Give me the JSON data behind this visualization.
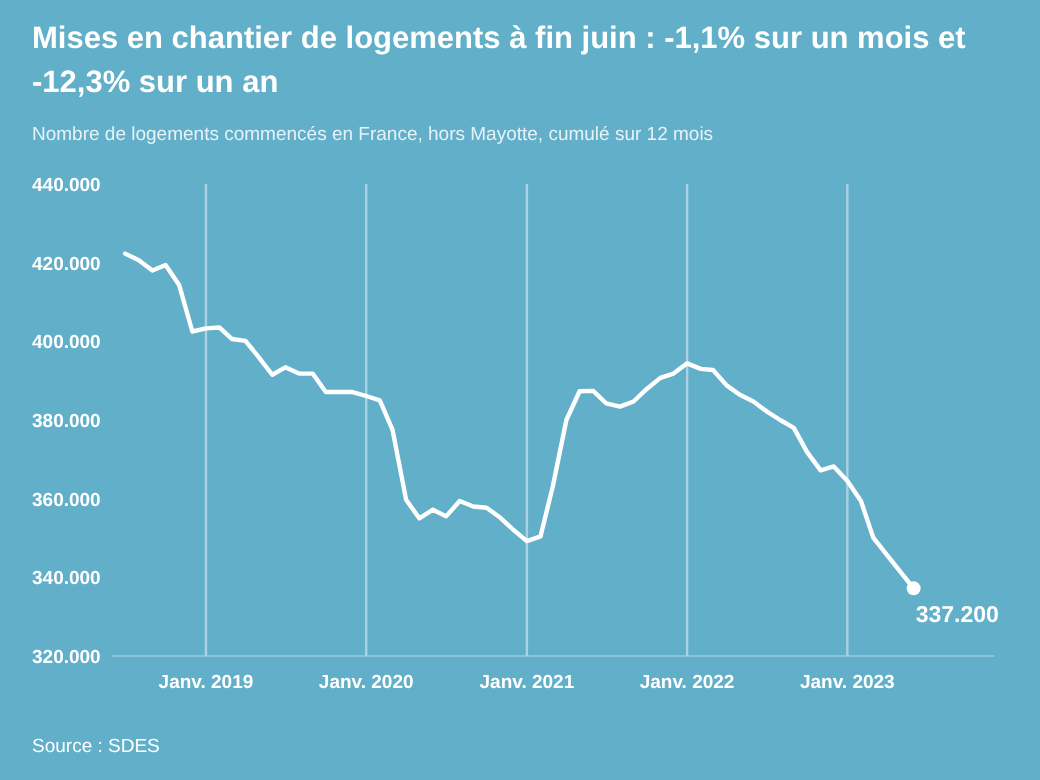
{
  "chart_data": {
    "type": "line",
    "title": "Mises en chantier de logements à fin juin : -1,1% sur un mois et -12,3% sur un an",
    "subtitle": "Nombre de logements commencés en France, hors Mayotte, cumulé sur 12 mois",
    "x": [
      "2018-07",
      "2018-08",
      "2018-09",
      "2018-10",
      "2018-11",
      "2018-12",
      "2019-01",
      "2019-02",
      "2019-03",
      "2019-04",
      "2019-05",
      "2019-06",
      "2019-07",
      "2019-08",
      "2019-09",
      "2019-10",
      "2019-11",
      "2019-12",
      "2020-01",
      "2020-02",
      "2020-03",
      "2020-04",
      "2020-05",
      "2020-06",
      "2020-07",
      "2020-08",
      "2020-09",
      "2020-10",
      "2020-11",
      "2020-12",
      "2021-01",
      "2021-02",
      "2021-03",
      "2021-04",
      "2021-05",
      "2021-06",
      "2021-07",
      "2021-08",
      "2021-09",
      "2021-10",
      "2021-11",
      "2021-12",
      "2022-01",
      "2022-02",
      "2022-03",
      "2022-04",
      "2022-05",
      "2022-06",
      "2022-07",
      "2022-08",
      "2022-09",
      "2022-10",
      "2022-11",
      "2022-12",
      "2023-01",
      "2023-02",
      "2023-03",
      "2023-04",
      "2023-05",
      "2023-06"
    ],
    "series": [
      {
        "color": "#ffffff",
        "values": [
          422300,
          420600,
          418000,
          419400,
          414300,
          402500,
          403300,
          403500,
          400600,
          400100,
          396000,
          391500,
          393400,
          391800,
          391800,
          387100,
          387100,
          387100,
          386100,
          385000,
          377500,
          359700,
          355000,
          357200,
          355500,
          359400,
          358000,
          357700,
          355200,
          352100,
          349200,
          350400,
          363100,
          380000,
          387300,
          387400,
          384200,
          383400,
          384700,
          387900,
          390700,
          391800,
          394400,
          393000,
          392700,
          388800,
          386400,
          384700,
          382200,
          380000,
          378000,
          371900,
          367200,
          368200,
          364500,
          359400,
          350100,
          345700,
          341500,
          337200
        ]
      }
    ],
    "xticks": [
      {
        "value": "2019-01",
        "label": "Janv. 2019"
      },
      {
        "value": "2020-01",
        "label": "Janv. 2020"
      },
      {
        "value": "2021-01",
        "label": "Janv. 2021"
      },
      {
        "value": "2022-01",
        "label": "Janv. 2022"
      },
      {
        "value": "2023-01",
        "label": "Janv. 2023"
      }
    ],
    "xlim": [
      "2018-06",
      "2023-12"
    ],
    "ylim": [
      320000,
      440000
    ],
    "yticks": [
      {
        "value": 320000,
        "label": "320.000"
      },
      {
        "value": 340000,
        "label": "340.000"
      },
      {
        "value": 360000,
        "label": "360.000"
      },
      {
        "value": 380000,
        "label": "380.000"
      },
      {
        "value": 400000,
        "label": "400.000"
      },
      {
        "value": 420000,
        "label": "420.000"
      },
      {
        "value": 440000,
        "label": "440.000"
      }
    ],
    "grid": "x",
    "marker": "none",
    "annotations": [
      {
        "text": "337.200",
        "x": "2023-06",
        "y": 337200
      },
      "Source : SDES"
    ]
  }
}
